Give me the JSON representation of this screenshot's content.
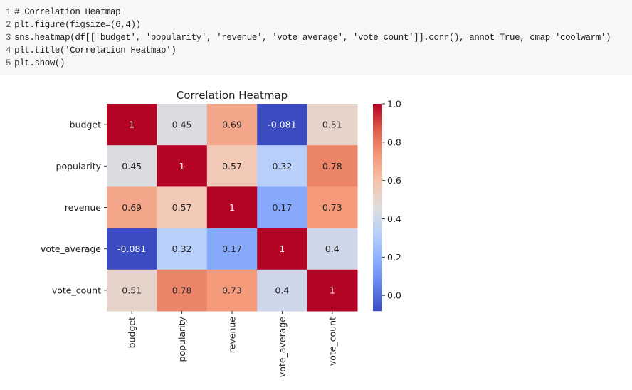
{
  "code_cell": {
    "lines": [
      {
        "n": "1",
        "text": "# Correlation Heatmap"
      },
      {
        "n": "2",
        "text": "plt.figure(figsize=(6,4))"
      },
      {
        "n": "3",
        "text": "sns.heatmap(df[['budget', 'popularity', 'revenue', 'vote_average', 'vote_count']].corr(), annot=True, cmap='coolwarm')"
      },
      {
        "n": "4",
        "text": "plt.title('Correlation Heatmap')"
      },
      {
        "n": "5",
        "text": "plt.show()"
      }
    ]
  },
  "chart_data": {
    "type": "heatmap",
    "title": "Correlation Heatmap",
    "colormap": "coolwarm",
    "rows": [
      "budget",
      "popularity",
      "revenue",
      "vote_average",
      "vote_count"
    ],
    "columns": [
      "budget",
      "popularity",
      "revenue",
      "vote_average",
      "vote_count"
    ],
    "values": [
      [
        1,
        0.45,
        0.69,
        -0.081,
        0.51
      ],
      [
        0.45,
        1,
        0.57,
        0.32,
        0.78
      ],
      [
        0.69,
        0.57,
        1,
        0.17,
        0.73
      ],
      [
        -0.081,
        0.32,
        0.17,
        1,
        0.4
      ],
      [
        0.51,
        0.78,
        0.73,
        0.4,
        1
      ]
    ],
    "labels": [
      [
        "1",
        "0.45",
        "0.69",
        "-0.081",
        "0.51"
      ],
      [
        "0.45",
        "1",
        "0.57",
        "0.32",
        "0.78"
      ],
      [
        "0.69",
        "0.57",
        "1",
        "0.17",
        "0.73"
      ],
      [
        "-0.081",
        "0.32",
        "0.17",
        "1",
        "0.4"
      ],
      [
        "0.51",
        "0.78",
        "0.73",
        "0.4",
        "1"
      ]
    ],
    "colorbar": {
      "range": [
        -0.081,
        1.0
      ],
      "ticks": [
        0.0,
        0.2,
        0.4,
        0.6,
        0.8,
        1.0
      ],
      "tick_labels": [
        "0.0",
        "0.2",
        "0.4",
        "0.6",
        "0.8",
        "1.0"
      ]
    }
  }
}
